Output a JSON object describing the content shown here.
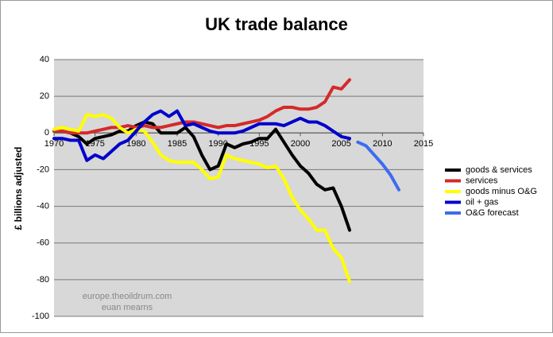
{
  "chart_data": {
    "type": "line",
    "title": "UK trade balance",
    "y_label": "£ billions adjusted",
    "annotations": [
      "europe.theoildrum.com",
      "euan mearns"
    ],
    "xlim": [
      1970,
      2015
    ],
    "xticks": [
      1970,
      1975,
      1980,
      1985,
      1990,
      1995,
      2000,
      2005,
      2010,
      2015
    ],
    "ylim": [
      -100,
      40
    ],
    "yticks": [
      -100,
      -80,
      -60,
      -40,
      -20,
      0,
      20,
      40
    ],
    "grid": true,
    "legend": "right",
    "series": [
      {
        "name": "goods & services",
        "color": "#000000",
        "x": [
          1970,
          1971,
          1972,
          1973,
          1974,
          1975,
          1976,
          1977,
          1978,
          1979,
          1980,
          1981,
          1982,
          1983,
          1984,
          1985,
          1986,
          1987,
          1988,
          1989,
          1990,
          1991,
          1992,
          1993,
          1994,
          1995,
          1996,
          1997,
          1998,
          1999,
          2000,
          2001,
          2002,
          2003,
          2004,
          2005,
          2006
        ],
        "values": [
          1,
          1,
          0,
          -2,
          -6,
          -3,
          -2,
          -1,
          1,
          1,
          4,
          6,
          5,
          0,
          0,
          0,
          3,
          -2,
          -12,
          -20,
          -18,
          -6,
          -8,
          -6,
          -5,
          -3,
          -3,
          2,
          -5,
          -12,
          -18,
          -22,
          -28,
          -31,
          -30,
          -40,
          -53
        ]
      },
      {
        "name": "services",
        "color": "#d42a2a",
        "x": [
          1970,
          1971,
          1972,
          1973,
          1974,
          1975,
          1976,
          1977,
          1978,
          1979,
          1980,
          1981,
          1982,
          1983,
          1984,
          1985,
          1986,
          1987,
          1988,
          1989,
          1990,
          1991,
          1992,
          1993,
          1994,
          1995,
          1996,
          1997,
          1998,
          1999,
          2000,
          2001,
          2002,
          2003,
          2004,
          2005,
          2006
        ],
        "values": [
          1,
          1,
          0,
          0,
          0,
          1,
          2,
          3,
          3,
          4,
          3,
          4,
          3,
          3,
          4,
          5,
          6,
          6,
          5,
          4,
          3,
          4,
          4,
          5,
          6,
          7,
          9,
          12,
          14,
          14,
          13,
          13,
          14,
          17,
          25,
          24,
          29
        ]
      },
      {
        "name": "goods minus O&G",
        "color": "#ffff00",
        "x": [
          1970,
          1971,
          1972,
          1973,
          1974,
          1975,
          1976,
          1977,
          1978,
          1979,
          1980,
          1981,
          1982,
          1983,
          1984,
          1985,
          1986,
          1987,
          1988,
          1989,
          1990,
          1991,
          1992,
          1993,
          1994,
          1995,
          1996,
          1997,
          1998,
          1999,
          2000,
          2001,
          2002,
          2003,
          2004,
          2005,
          2006
        ],
        "values": [
          2,
          3,
          2,
          1,
          10,
          9,
          10,
          8,
          3,
          0,
          2,
          1,
          -5,
          -12,
          -15,
          -16,
          -16,
          -16,
          -20,
          -25,
          -24,
          -12,
          -14,
          -15,
          -16,
          -17,
          -19,
          -18,
          -25,
          -35,
          -42,
          -47,
          -53,
          -53,
          -63,
          -68,
          -81
        ]
      },
      {
        "name": "oil + gas",
        "color": "#0000cc",
        "x": [
          1970,
          1971,
          1972,
          1973,
          1974,
          1975,
          1976,
          1977,
          1978,
          1979,
          1980,
          1981,
          1982,
          1983,
          1984,
          1985,
          1986,
          1987,
          1988,
          1989,
          1990,
          1991,
          1992,
          1993,
          1994,
          1995,
          1996,
          1997,
          1998,
          1999,
          2000,
          2001,
          2002,
          2003,
          2004,
          2005,
          2006
        ],
        "values": [
          -3,
          -3,
          -4,
          -4,
          -15,
          -12,
          -14,
          -10,
          -6,
          -4,
          1,
          6,
          10,
          12,
          9,
          12,
          4,
          5,
          3,
          1,
          0,
          0,
          0,
          1,
          3,
          5,
          5,
          5,
          4,
          6,
          8,
          6,
          6,
          4,
          1,
          -2,
          -3
        ]
      },
      {
        "name": "O&G forecast",
        "color": "#3d6cf0",
        "x": [
          2007,
          2008,
          2009,
          2010,
          2011,
          2012
        ],
        "values": [
          -5,
          -7,
          -12,
          -17,
          -23,
          -31
        ]
      }
    ]
  }
}
